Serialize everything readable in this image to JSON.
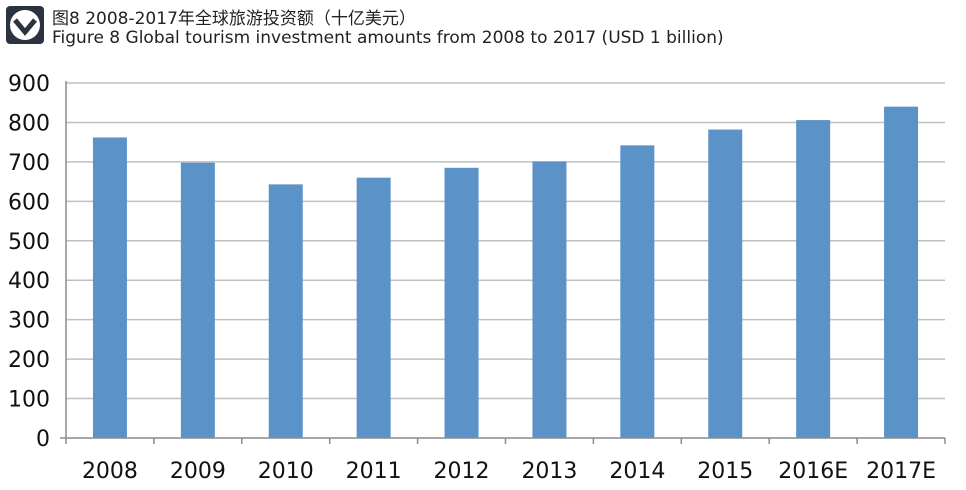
{
  "title_cn": "图8 2008-2017年全球旅游投资额（十亿美元）",
  "title_en": "Figure 8 Global tourism investment amounts from 2008 to 2017 (USD 1 billion)",
  "logo_icon": "chevron-badge-icon",
  "chart_data": {
    "type": "bar",
    "categories": [
      "2008",
      "2009",
      "2010",
      "2011",
      "2012",
      "2013",
      "2014",
      "2015",
      "2016E",
      "2017E"
    ],
    "values": [
      762,
      698,
      643,
      660,
      685,
      701,
      742,
      782,
      806,
      840
    ],
    "ylim": [
      0,
      900
    ],
    "yticks": [
      0,
      100,
      200,
      300,
      400,
      500,
      600,
      700,
      800,
      900
    ],
    "grid": true,
    "legend": "none",
    "bar_color": "#5b93c8",
    "grid_color": "#bfbfbf"
  }
}
